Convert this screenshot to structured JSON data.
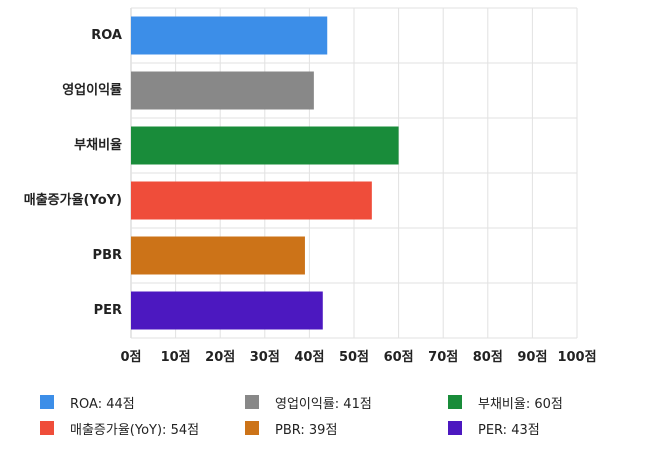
{
  "chart_data": {
    "type": "bar",
    "orientation": "horizontal",
    "categories": [
      "ROA",
      "영업이익률",
      "부채비율",
      "매출증가율(YoY)",
      "PBR",
      "PER"
    ],
    "values": [
      44,
      41,
      60,
      54,
      39,
      43
    ],
    "colors": [
      "#3c8ee8",
      "#888888",
      "#198c3a",
      "#ef4d3a",
      "#cc7318",
      "#4c18c0"
    ],
    "xlim": [
      0,
      100
    ],
    "ticks": [
      "0점",
      "10점",
      "20점",
      "30점",
      "40점",
      "50점",
      "60점",
      "70점",
      "80점",
      "90점",
      "100점"
    ],
    "grid": true,
    "legend_position": "bottom",
    "legend": [
      "ROA: 44점",
      "영업이익률: 41점",
      "부채비율: 60점",
      "매출증가율(YoY): 54점",
      "PBR: 39점",
      "PER: 43점"
    ]
  }
}
